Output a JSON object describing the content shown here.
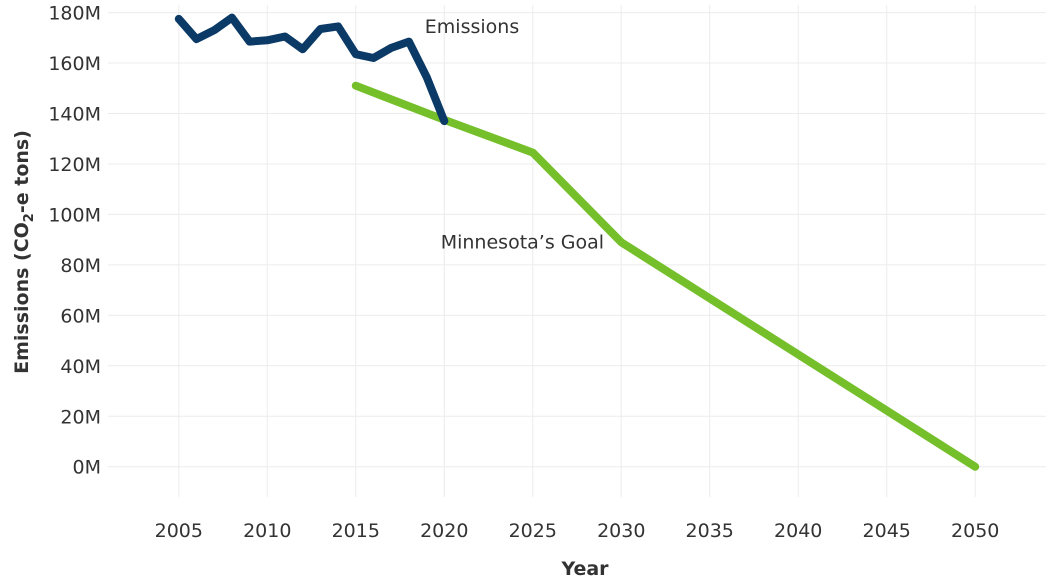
{
  "chart_data": {
    "type": "line",
    "title": "",
    "xlabel": "Year",
    "ylabel_prefix": "Emissions (CO",
    "ylabel_sub": "2",
    "ylabel_suffix": "-e tons)",
    "xlim": [
      2001,
      2054
    ],
    "ylim": [
      -12,
      183
    ],
    "grid": true,
    "x_ticks": [
      2005,
      2010,
      2015,
      2020,
      2025,
      2030,
      2035,
      2040,
      2045,
      2050
    ],
    "x_tick_labels": [
      "2005",
      "2010",
      "2015",
      "2020",
      "2025",
      "2030",
      "2035",
      "2040",
      "2045",
      "2050"
    ],
    "y_ticks": [
      0,
      20,
      40,
      60,
      80,
      100,
      120,
      140,
      160,
      180
    ],
    "y_tick_labels": [
      "0M",
      "20M",
      "40M",
      "60M",
      "80M",
      "100M",
      "120M",
      "140M",
      "160M",
      "180M"
    ],
    "series": [
      {
        "key": "emissions",
        "name": "Emissions",
        "color": "#0b3a66",
        "points": [
          [
            2005,
            177.5
          ],
          [
            2006,
            169.5
          ],
          [
            2007,
            173
          ],
          [
            2008,
            178
          ],
          [
            2009,
            168.5
          ],
          [
            2010,
            169
          ],
          [
            2011,
            170.5
          ],
          [
            2012,
            165.5
          ],
          [
            2013,
            173.5
          ],
          [
            2014,
            174.5
          ],
          [
            2015,
            163.5
          ],
          [
            2016,
            162
          ],
          [
            2017,
            166
          ],
          [
            2018,
            168.5
          ],
          [
            2019,
            154.5
          ],
          [
            2020,
            137
          ]
        ],
        "label_x": 2018.9,
        "label_y": 172
      },
      {
        "key": "goal",
        "name": "Minnesota’s Goal",
        "color": "#74bf2a",
        "points": [
          [
            2015,
            151
          ],
          [
            2020,
            137.5
          ],
          [
            2025,
            124.5
          ],
          [
            2030,
            89
          ],
          [
            2050,
            0
          ]
        ],
        "label_x": 2019.8,
        "label_y": 86.5
      }
    ]
  }
}
